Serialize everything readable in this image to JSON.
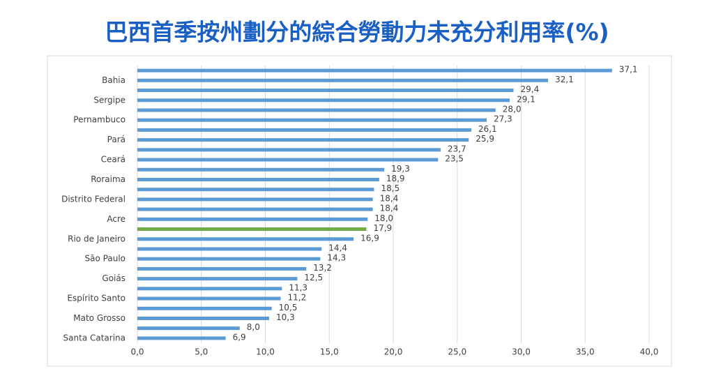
{
  "chart_data": {
    "type": "bar",
    "orientation": "horizontal",
    "title": "巴西首季按州劃分的綜合勞動力未充分利用率(%)",
    "categories": [
      null,
      "Bahia",
      null,
      "Sergipe",
      null,
      "Pernambuco",
      null,
      "Pará",
      null,
      "Ceará",
      null,
      "Roraima",
      null,
      "Distrito Federal",
      null,
      "Acre",
      null,
      "Rio de Janeiro",
      null,
      "São Paulo",
      null,
      "Goiás",
      null,
      "Espírito Santo",
      null,
      "Mato Grosso",
      null,
      "Santa Catarina"
    ],
    "values": [
      37.1,
      32.1,
      29.4,
      29.1,
      28.0,
      27.3,
      26.1,
      25.9,
      23.7,
      23.5,
      19.3,
      18.9,
      18.5,
      18.4,
      18.4,
      18.0,
      17.9,
      16.9,
      14.4,
      14.3,
      13.2,
      12.5,
      11.3,
      11.2,
      10.5,
      10.3,
      8.0,
      6.9
    ],
    "value_labels": [
      "37,1",
      "32,1",
      "29,4",
      "29,1",
      "28,0",
      "27,3",
      "26,1",
      "25,9",
      "23,7",
      "23,5",
      "19,3",
      "18,9",
      "18,5",
      "18,4",
      "18,4",
      "18,0",
      "17,9",
      "16,9",
      "14,4",
      "14,3",
      "13,2",
      "12,5",
      "11,3",
      "11,2",
      "10,5",
      "10,3",
      "8,0",
      "6,9"
    ],
    "colors": [
      "#5b9bd5",
      "#5b9bd5",
      "#5b9bd5",
      "#5b9bd5",
      "#5b9bd5",
      "#5b9bd5",
      "#5b9bd5",
      "#5b9bd5",
      "#5b9bd5",
      "#5b9bd5",
      "#5b9bd5",
      "#5b9bd5",
      "#5b9bd5",
      "#5b9bd5",
      "#5b9bd5",
      "#5b9bd5",
      "#70ad47",
      "#5b9bd5",
      "#5b9bd5",
      "#5b9bd5",
      "#5b9bd5",
      "#5b9bd5",
      "#5b9bd5",
      "#5b9bd5",
      "#5b9bd5",
      "#5b9bd5",
      "#5b9bd5",
      "#5b9bd5"
    ],
    "xlim": [
      0,
      40
    ],
    "xticks": [
      {
        "value": 0,
        "label": "0,0"
      },
      {
        "value": 5,
        "label": "5,0"
      },
      {
        "value": 10,
        "label": "10,0"
      },
      {
        "value": 15,
        "label": "15,0"
      },
      {
        "value": 20,
        "label": "20,0"
      },
      {
        "value": 25,
        "label": "25,0"
      },
      {
        "value": 30,
        "label": "30,0"
      },
      {
        "value": 35,
        "label": "35,0"
      },
      {
        "value": 40,
        "label": "40,0"
      }
    ],
    "grid": true
  }
}
